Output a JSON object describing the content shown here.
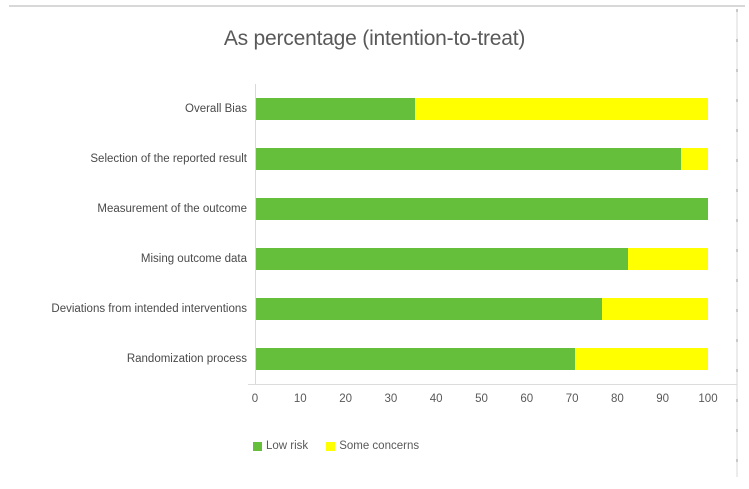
{
  "chart_data": {
    "type": "bar",
    "orientation": "horizontal",
    "stacked": true,
    "title": "As percentage (intention-to-treat)",
    "categories": [
      "Overall Bias",
      "Selection of the reported result",
      "Measurement of the outcome",
      "Mising outcome data",
      "Deviations from intended interventions",
      "Randomization process"
    ],
    "series": [
      {
        "name": "Low risk",
        "color": "#65BF3B",
        "values": [
          35.3,
          94.1,
          100,
          82.4,
          76.5,
          70.6
        ]
      },
      {
        "name": "Some concerns",
        "color": "#FFFF00",
        "values": [
          64.7,
          5.9,
          0,
          17.6,
          23.5,
          29.4
        ]
      }
    ],
    "x_ticks": [
      0,
      10,
      20,
      30,
      40,
      50,
      60,
      70,
      80,
      90,
      100
    ],
    "xlim": [
      0,
      100
    ],
    "grid": false,
    "legend_position": "bottom",
    "axis_color": "#D9D9D9",
    "title_color": "#595959",
    "label_color": "#4A4A4A"
  }
}
